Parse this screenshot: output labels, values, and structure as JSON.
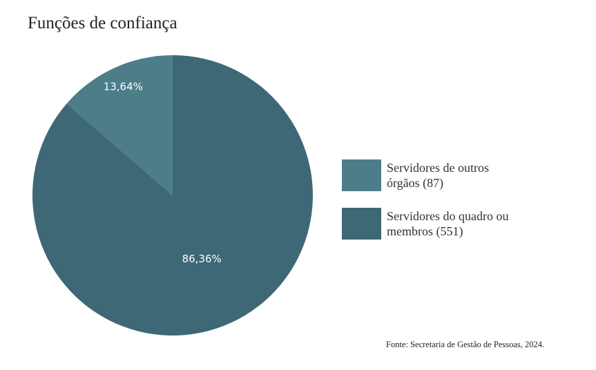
{
  "chart_data": {
    "type": "pie",
    "title": "Funções de confiança",
    "categories": [
      "Servidores de outros órgãos (87)",
      "Servidores do quadro ou membros (551)"
    ],
    "values": [
      13.64,
      86.36
    ],
    "value_labels": [
      "13,64%",
      "86,36%"
    ],
    "colors": [
      "#4e7d8a",
      "#3e6875"
    ],
    "source": "Fonte:  Secretaria de Gestão de Pessoas, 2024."
  }
}
